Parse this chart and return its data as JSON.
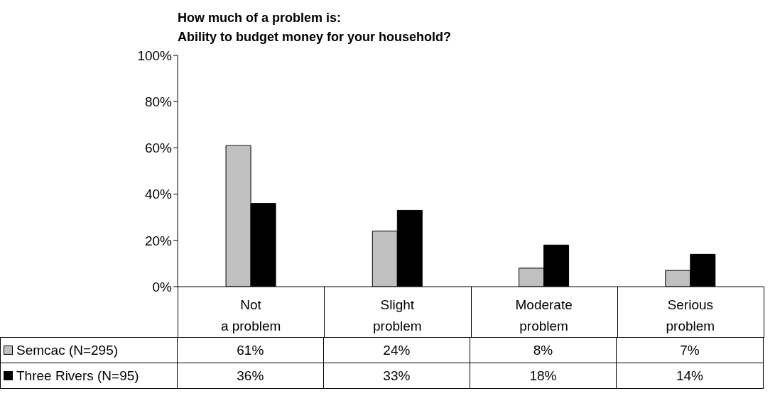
{
  "chart_data": {
    "type": "bar",
    "title": "How much of a problem is:\nAbility to budget money for your household?",
    "categories": [
      "Not\na problem",
      "Slight\nproblem",
      "Moderate\nproblem",
      "Serious\nproblem"
    ],
    "series": [
      {
        "name": "Semcac (N=295)",
        "color": "#c0c0c0",
        "values": [
          61,
          24,
          8,
          7
        ],
        "value_labels": [
          "61%",
          "24%",
          "8%",
          "7%"
        ]
      },
      {
        "name": "Three Rivers (N=95)",
        "color": "#000000",
        "values": [
          36,
          33,
          18,
          14
        ],
        "value_labels": [
          "36%",
          "33%",
          "18%",
          "14%"
        ]
      }
    ],
    "ylim": [
      0,
      100
    ],
    "yticks": [
      {
        "value": 0,
        "label": "0%"
      },
      {
        "value": 20,
        "label": "20%"
      },
      {
        "value": 40,
        "label": "40%"
      },
      {
        "value": 60,
        "label": "60%"
      },
      {
        "value": 80,
        "label": "80%"
      },
      {
        "value": 100,
        "label": "100%"
      }
    ],
    "grid": false,
    "legend": "bottom"
  }
}
